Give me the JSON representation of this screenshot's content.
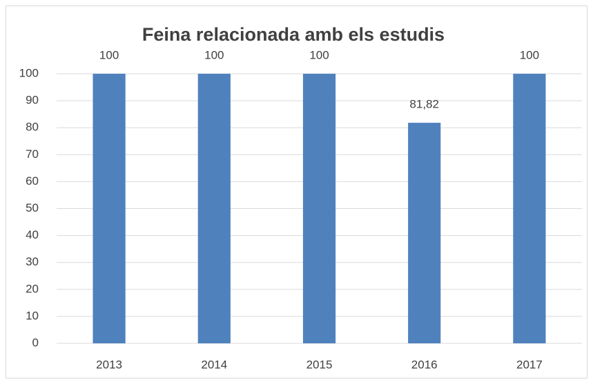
{
  "chart_data": {
    "type": "bar",
    "title": "Feina relacionada amb els estudis",
    "categories": [
      "2013",
      "2014",
      "2015",
      "2016",
      "2017"
    ],
    "values": [
      100,
      100,
      100,
      81.82,
      100
    ],
    "value_labels": [
      "100",
      "100",
      "100",
      "81,82",
      "100"
    ],
    "color": "#4f81bd",
    "ylim": [
      0,
      100
    ],
    "yticks": [
      0,
      10,
      20,
      30,
      40,
      50,
      60,
      70,
      80,
      90,
      100
    ],
    "grid": true
  }
}
